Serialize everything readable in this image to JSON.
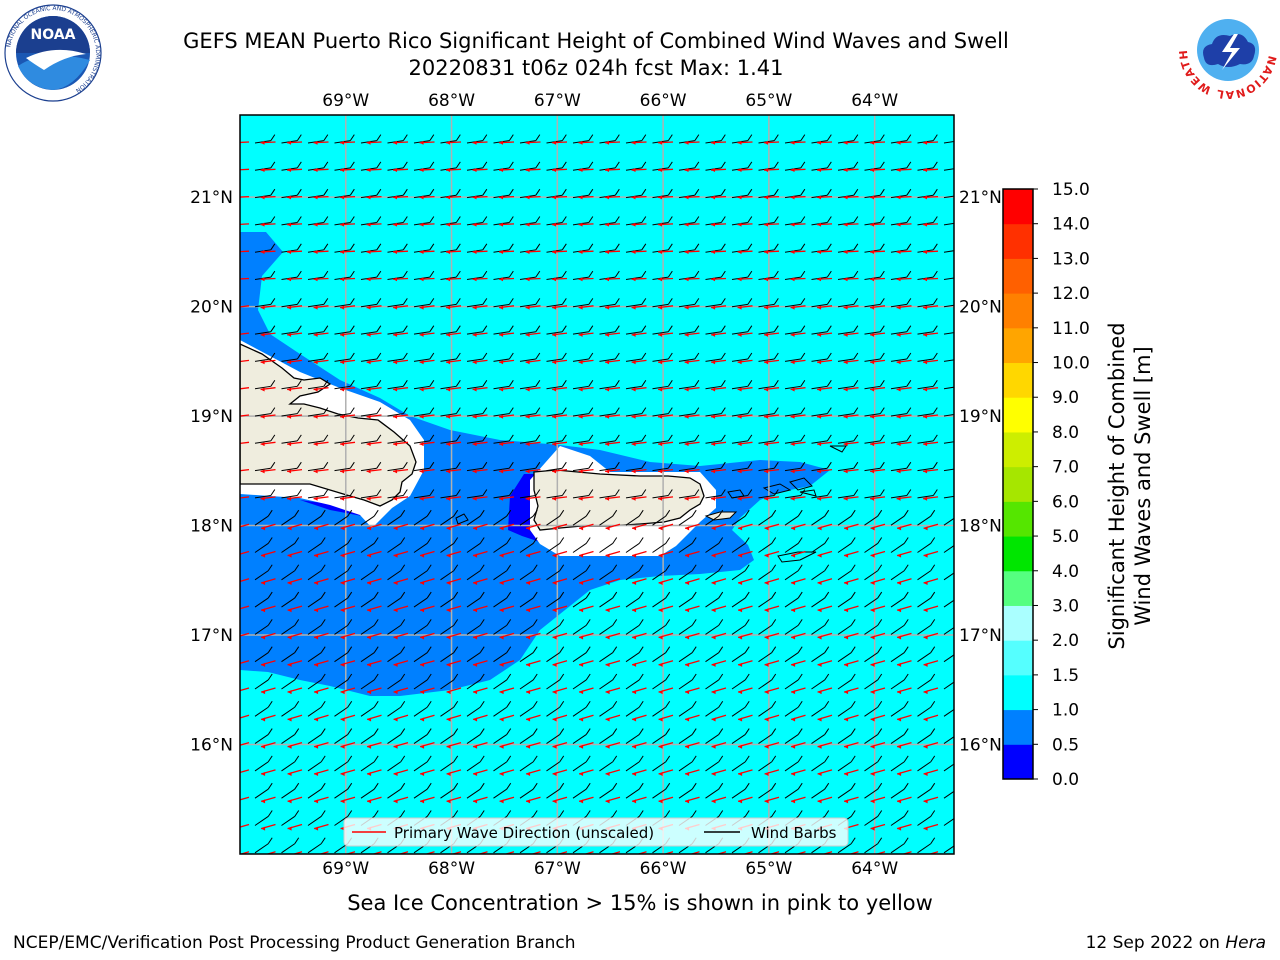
{
  "header": {
    "title_line1": "GEFS MEAN Puerto Rico Significant Height of Combined Wind Waves and Swell",
    "title_line2": "20220831 t06z 024h fcst   Max: 1.41"
  },
  "map": {
    "lon_ticks": [
      -69,
      -68,
      -67,
      -66,
      -65,
      -64
    ],
    "lon_labels": [
      "69°W",
      "68°W",
      "67°W",
      "66°W",
      "65°W",
      "64°W"
    ],
    "lat_ticks": [
      21,
      20,
      19,
      18,
      17,
      16
    ],
    "lat_labels": [
      "21°N",
      "20°N",
      "19°N",
      "18°N",
      "17°N",
      "16°N"
    ],
    "lon_range": [
      -70,
      -63.25
    ],
    "lat_range": [
      15,
      21.75
    ],
    "colors": {
      "ocean_low": "#00ffff",
      "ocean_mid": "#0080ff",
      "ocean_deep": "#0000ff",
      "land": "#efedde",
      "wave_arrow": "#ff0000",
      "wind_barb": "#000000",
      "grid": "#b0b0b0"
    }
  },
  "legend": {
    "primary_wave": "Primary Wave Direction (unscaled)",
    "wind_barbs": "Wind Barbs"
  },
  "colorbar": {
    "label_line1": "Significant Height of Combined",
    "label_line2": "Wind Waves and Swell [m]",
    "ticks": [
      "0.0",
      "0.5",
      "1.0",
      "1.5",
      "2.0",
      "3.0",
      "4.0",
      "5.0",
      "6.0",
      "7.0",
      "8.0",
      "9.0",
      "10.0",
      "11.0",
      "12.0",
      "13.0",
      "14.0",
      "15.0"
    ],
    "colors": [
      "#0000ff",
      "#0080ff",
      "#00ffff",
      "#55ffff",
      "#aaffff",
      "#55ff80",
      "#00e600",
      "#55e600",
      "#a6e600",
      "#cdee00",
      "#ffff00",
      "#ffd700",
      "#ffa500",
      "#ff8000",
      "#ff6000",
      "#ff3000",
      "#ff0000"
    ]
  },
  "caption": "Sea Ice Concentration > 15% is shown in pink to yellow",
  "footer": {
    "left": "NCEP/EMC/Verification Post Processing Product Generation Branch",
    "right_date": "12 Sep 2022 on ",
    "right_host": "Hera"
  },
  "logos": {
    "noaa_text": "NOAA",
    "noaa_ring": "NATIONAL OCEANIC AND ATMOSPHERIC ADMINISTRATION",
    "noaa_ring_bottom": "U.S. DEPARTMENT OF COMMERCE",
    "nws_ring": "NATIONAL WEATHER SERVICE"
  }
}
